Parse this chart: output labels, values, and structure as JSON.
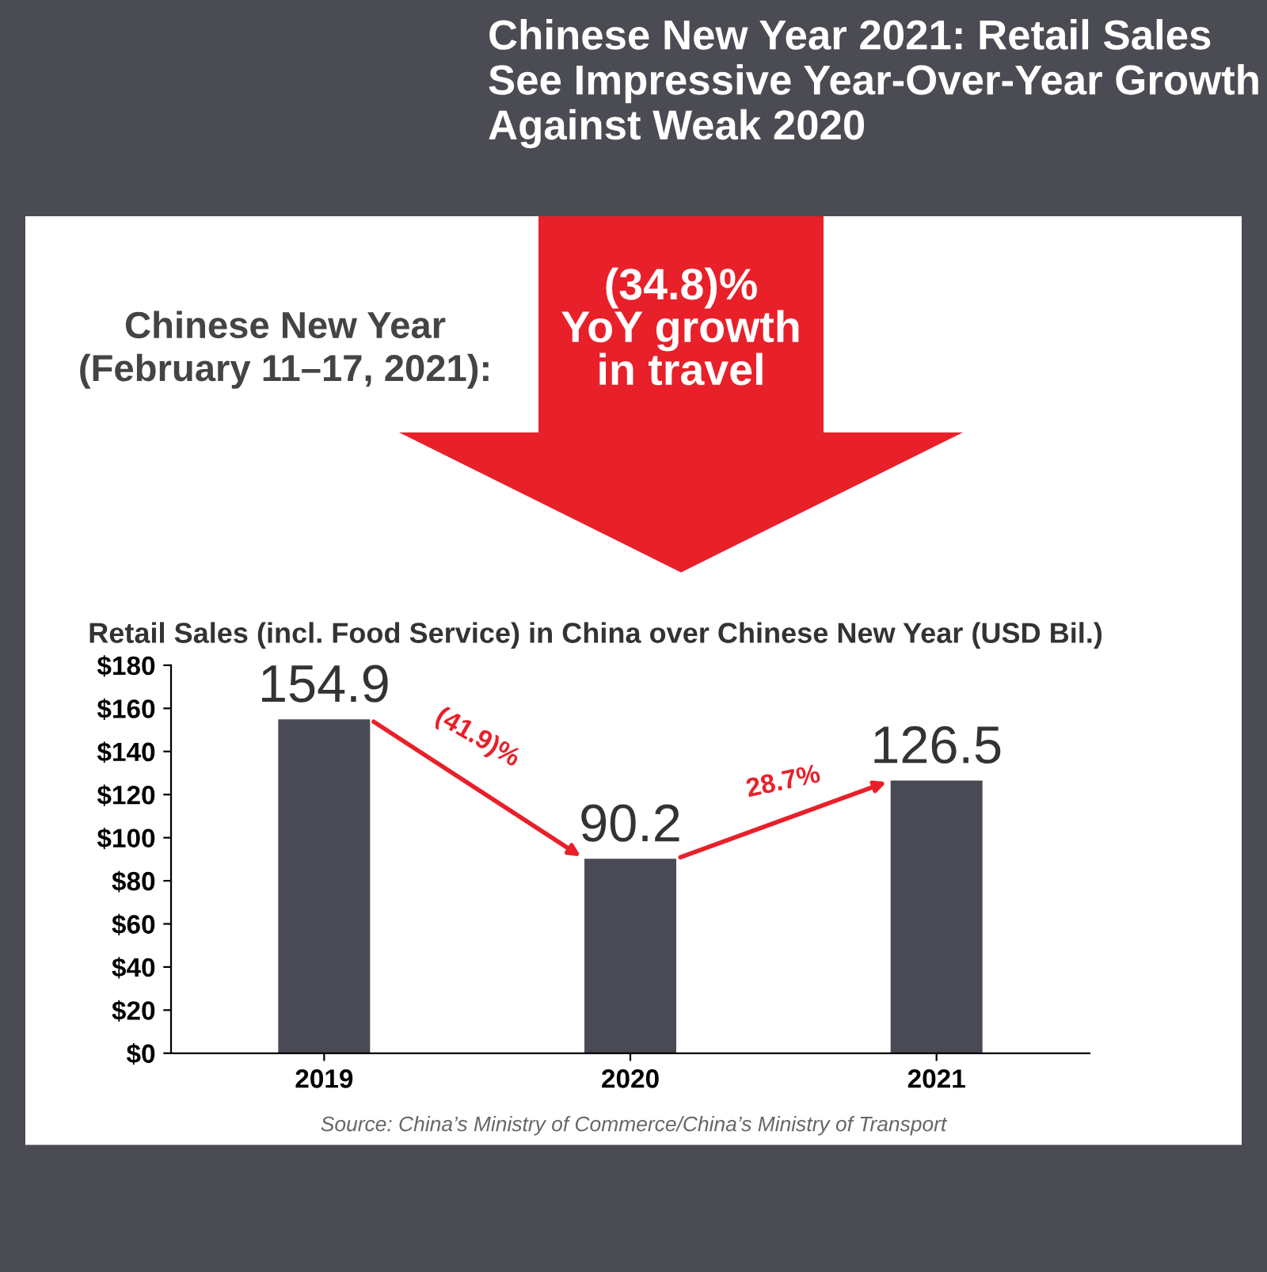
{
  "chart_data": {
    "type": "bar",
    "title": "Chinese New Year 2021: Retail Sales See Impressive Year-Over-Year Growth Against Weak 2020",
    "subtitle": "Retail Sales (incl. Food Service) in China over Chinese New Year (USD Bil.)",
    "categories": [
      "2019",
      "2020",
      "2021"
    ],
    "values": [
      154.9,
      90.2,
      126.5
    ],
    "color": "#4a4a54",
    "data_labels": true,
    "ylim": [
      0,
      180
    ],
    "yticks": [
      {
        "value": 0,
        "label": "$0"
      },
      {
        "value": 20,
        "label": "$20"
      },
      {
        "value": 40,
        "label": "$40"
      },
      {
        "value": 60,
        "label": "$60"
      },
      {
        "value": 80,
        "label": "$80"
      },
      {
        "value": 100,
        "label": "$100"
      },
      {
        "value": 120,
        "label": "$120"
      },
      {
        "value": 140,
        "label": "$140"
      },
      {
        "value": 160,
        "label": "$160"
      },
      {
        "value": 180,
        "label": "$180"
      }
    ],
    "grid": false,
    "annotations": [
      "Chinese New Year\n(February 11–17, 2021):",
      "(34.8)%\nYoY growth\nin travel",
      "(41.9)%",
      "28.7%",
      "Source: China’s Ministry of Commerce/China’s Ministry of Transport"
    ]
  }
}
